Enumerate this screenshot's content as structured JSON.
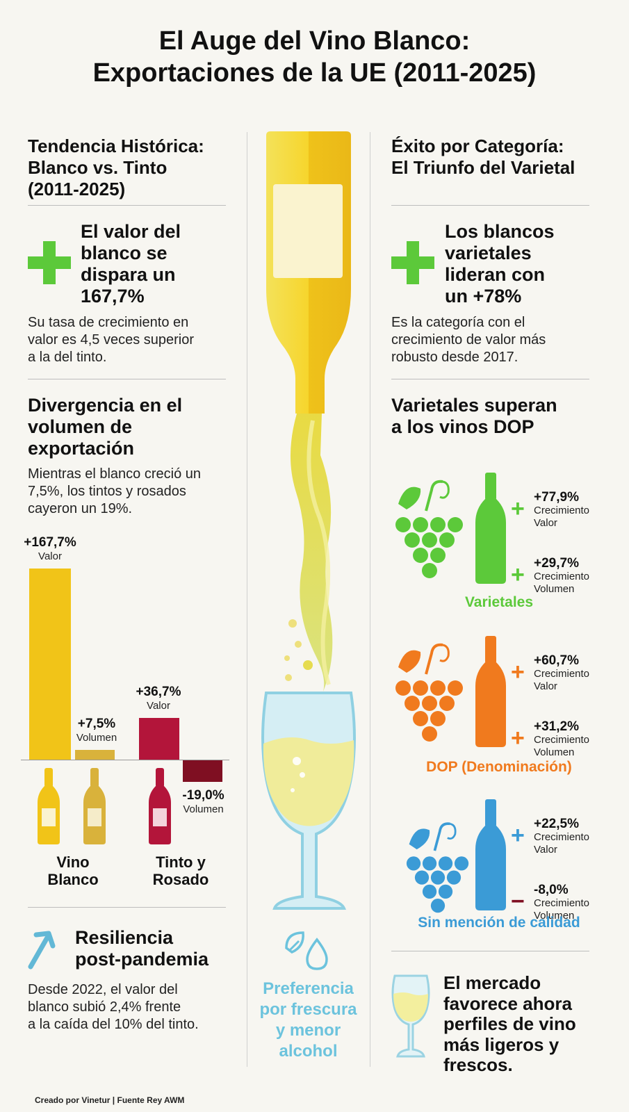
{
  "title": {
    "line1": "El Auge del Vino Blanco:",
    "line2": "Exportaciones de la UE (2011-2025)"
  },
  "left": {
    "heading": {
      "l1": "Tendencia Histórica:",
      "l2": "Blanco vs. Tinto",
      "l3": "(2011-2025)"
    },
    "value_highlight": {
      "l1": "El valor del",
      "l2": "blanco se",
      "l3": "dispara un",
      "l4": "167,7%"
    },
    "value_desc": {
      "l1": "Su tasa de crecimiento en",
      "l2": "valor es 4,5 veces superior",
      "l3": "a la del tinto."
    },
    "volume_heading": {
      "l1": "Divergencia en el",
      "l2": "volumen de",
      "l3": "exportación"
    },
    "volume_desc": {
      "l1": "Mientras el blanco creció un",
      "l2": "7,5%, los tintos y rosados",
      "l3": "cayeron un 19%."
    },
    "bars": {
      "white_value": {
        "label": "+167,7%",
        "sub": "Valor",
        "value": 167.7
      },
      "white_volume": {
        "label": "+7,5%",
        "sub": "Volumen",
        "value": 7.5
      },
      "red_value": {
        "label": "+36,7%",
        "sub": "Valor",
        "value": 36.7
      },
      "red_volume": {
        "label": "-19,0%",
        "sub": "Volumen",
        "value": -19.0
      }
    },
    "cat_white": {
      "l1": "Vino",
      "l2": "Blanco"
    },
    "cat_red": {
      "l1": "Tinto y",
      "l2": "Rosado"
    },
    "resilience": {
      "l1": "Resiliencia",
      "l2": "post-pandemia"
    },
    "resilience_desc": {
      "l1": "Desde 2022, el valor del",
      "l2": "blanco subió 2,4% frente",
      "l3": "a la caída del 10% del tinto."
    }
  },
  "center": {
    "pref": {
      "l1": "Preferencia",
      "l2": "por frescura",
      "l3": "y menor",
      "l4": "alcohol"
    }
  },
  "right": {
    "heading": {
      "l1": "Éxito por Categoría:",
      "l2": "El Triunfo del Varietal"
    },
    "highlight": {
      "l1": "Los blancos",
      "l2": "varietales",
      "l3": "lideran con",
      "l4": "un +78%"
    },
    "desc": {
      "l1": "Es la categoría con el",
      "l2": "crecimiento de valor más",
      "l3": "robusto desde 2017."
    },
    "sub_heading": {
      "l1": "Varietales superan",
      "l2": "a los vinos DOP"
    },
    "categories": [
      {
        "name": "Varietales",
        "color": "#5cc93a",
        "stats": [
          {
            "sign": "+",
            "pct": "+77,9%",
            "sub1": "Crecimiento",
            "sub2": "Valor"
          },
          {
            "sign": "+",
            "pct": "+29,7%",
            "sub1": "Crecimiento",
            "sub2": "Volumen"
          }
        ]
      },
      {
        "name": "DOP (Denominación)",
        "color": "#f07a1e",
        "stats": [
          {
            "sign": "+",
            "pct": "+60,7%",
            "sub1": "Crecimiento",
            "sub2": "Valor"
          },
          {
            "sign": "+",
            "pct": "+31,2%",
            "sub1": "Crecimiento",
            "sub2": "Volumen"
          }
        ]
      },
      {
        "name": "Sin mención de calidad",
        "color": "#3b9bd6",
        "stats": [
          {
            "sign": "+",
            "pct": "+22,5%",
            "sub1": "Crecimiento",
            "sub2": "Valor"
          },
          {
            "sign": "−",
            "pct": "-8,0%",
            "sub1": "Crecimiento",
            "sub2": "Volumen"
          }
        ]
      }
    ],
    "market": {
      "l1": "El mercado",
      "l2": "favorece ahora",
      "l3": "perfiles de vino",
      "l4": "más ligeros y",
      "l5": "frescos."
    }
  },
  "footer": "Creado por Vinetur | Fuente Rey AWM",
  "colors": {
    "white_wine": "#f1c418",
    "white_wine_light": "#f6e04a",
    "red_wine": "#b3153a",
    "dark_red": "#7f0f22",
    "gold": "#d9b23b",
    "green": "#5cc93a",
    "orange": "#f07a1e",
    "blue": "#3b9bd6",
    "teal": "#5fb9d8"
  }
}
